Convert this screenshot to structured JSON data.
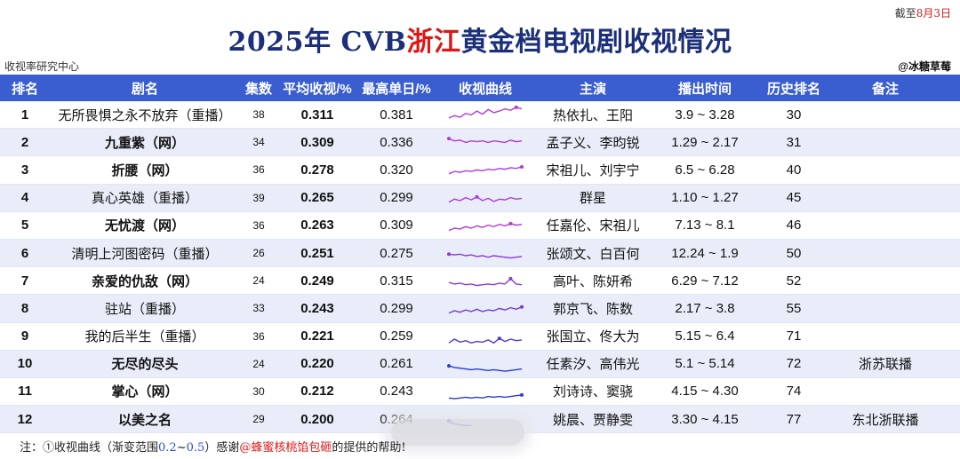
{
  "date_note": {
    "prefix": "截至",
    "date": "8月3日"
  },
  "title": {
    "part1": "2025年 CVB",
    "highlight": "浙江",
    "part2": "黄金档电视剧收视情况"
  },
  "source": "收视率研究中心",
  "author": "@冰糖草莓",
  "headers": [
    "排名",
    "剧名",
    "集数",
    "平均收视/%",
    "最高单日/%",
    "收视曲线",
    "主演",
    "播出时间",
    "历史排名",
    "备注"
  ],
  "colors": {
    "header_bg": "#3a5ecf",
    "title": "#1b2f7a",
    "highlight": "#e01515",
    "alt_row": "#e8edf9"
  },
  "rows": [
    {
      "rank": "1",
      "name": "无所畏惧之永不放弃（重播）",
      "bold": false,
      "eps": "38",
      "avg": "0.311",
      "peak": "0.381",
      "actors": "热依扎、王阳",
      "time": "3.9 ~ 3.28",
      "hist": "30",
      "note": "",
      "curve": [
        0.24,
        0.27,
        0.25,
        0.3,
        0.28,
        0.33,
        0.29,
        0.35,
        0.31,
        0.33,
        0.36,
        0.34,
        0.38,
        0.36
      ],
      "curve_color": "#b13ad6"
    },
    {
      "rank": "2",
      "name": "九重紫（网）",
      "bold": true,
      "eps": "34",
      "avg": "0.309",
      "peak": "0.336",
      "actors": "孟子义、李昀锐",
      "time": "1.29 ~ 2.17",
      "hist": "31",
      "note": "",
      "curve": [
        0.33,
        0.3,
        0.31,
        0.28,
        0.3,
        0.29,
        0.3,
        0.28,
        0.3,
        0.29,
        0.28,
        0.31,
        0.29,
        0.3
      ],
      "curve_color": "#b13ad6"
    },
    {
      "rank": "3",
      "name": "折腰（网）",
      "bold": true,
      "eps": "36",
      "avg": "0.278",
      "peak": "0.320",
      "actors": "宋祖儿、刘宇宁",
      "time": "6.5 ~ 6.28",
      "hist": "40",
      "note": "",
      "curve": [
        0.23,
        0.26,
        0.25,
        0.27,
        0.26,
        0.28,
        0.27,
        0.29,
        0.28,
        0.3,
        0.29,
        0.31,
        0.3,
        0.32
      ],
      "curve_color": "#b13ad6"
    },
    {
      "rank": "4",
      "name": "真心英雄（重播）",
      "bold": false,
      "eps": "39",
      "avg": "0.265",
      "peak": "0.299",
      "actors": "群星",
      "time": "1.10 ~ 1.27",
      "hist": "45",
      "note": "",
      "curve": [
        0.23,
        0.27,
        0.25,
        0.29,
        0.26,
        0.3,
        0.25,
        0.28,
        0.24,
        0.27,
        0.26,
        0.29,
        0.27,
        0.28
      ],
      "curve_color": "#b13ad6"
    },
    {
      "rank": "5",
      "name": "无忧渡（网）",
      "bold": true,
      "eps": "36",
      "avg": "0.263",
      "peak": "0.309",
      "actors": "任嘉伦、宋祖儿",
      "time": "7.13 ~ 8.1",
      "hist": "46",
      "note": "",
      "curve": [
        0.22,
        0.25,
        0.24,
        0.27,
        0.25,
        0.28,
        0.26,
        0.29,
        0.27,
        0.3,
        0.28,
        0.31,
        0.29,
        0.3
      ],
      "curve_color": "#b13ad6"
    },
    {
      "rank": "6",
      "name": "清明上河图密码（重播）",
      "bold": false,
      "eps": "26",
      "avg": "0.251",
      "peak": "0.275",
      "actors": "张颂文、白百何",
      "time": "12.24 ~ 1.9",
      "hist": "50",
      "note": "",
      "curve": [
        0.27,
        0.26,
        0.27,
        0.25,
        0.26,
        0.24,
        0.25,
        0.23,
        0.25,
        0.24,
        0.23,
        0.22,
        0.23,
        0.24
      ],
      "curve_color": "#8b3ad6"
    },
    {
      "rank": "7",
      "name": "亲爱的仇敌（网）",
      "bold": true,
      "eps": "24",
      "avg": "0.249",
      "peak": "0.315",
      "actors": "高叶、陈妍希",
      "time": "6.29 ~ 7.12",
      "hist": "52",
      "note": "",
      "curve": [
        0.26,
        0.24,
        0.25,
        0.23,
        0.24,
        0.22,
        0.23,
        0.24,
        0.23,
        0.25,
        0.24,
        0.31,
        0.24,
        0.23
      ],
      "curve_color": "#8b3ad6"
    },
    {
      "rank": "8",
      "name": "驻站（重播）",
      "bold": false,
      "eps": "33",
      "avg": "0.243",
      "peak": "0.299",
      "actors": "郭京飞、陈数",
      "time": "2.17 ~ 3.8",
      "hist": "55",
      "note": "",
      "curve": [
        0.22,
        0.25,
        0.23,
        0.26,
        0.24,
        0.27,
        0.24,
        0.26,
        0.25,
        0.28,
        0.26,
        0.29,
        0.27,
        0.3
      ],
      "curve_color": "#7a3ad6"
    },
    {
      "rank": "9",
      "name": "我的后半生（重播）",
      "bold": false,
      "eps": "36",
      "avg": "0.221",
      "peak": "0.259",
      "actors": "张国立、佟大为",
      "time": "5.15 ~ 6.4",
      "hist": "71",
      "note": "",
      "curve": [
        0.2,
        0.25,
        0.21,
        0.23,
        0.2,
        0.22,
        0.21,
        0.24,
        0.2,
        0.26,
        0.22,
        0.25,
        0.23,
        0.24
      ],
      "curve_color": "#4a3ad6"
    },
    {
      "rank": "10",
      "name": "无尽的尽头",
      "bold": true,
      "eps": "24",
      "avg": "0.220",
      "peak": "0.261",
      "actors": "任素汐、高伟光",
      "time": "5.1 ~ 5.14",
      "hist": "72",
      "note": "浙苏联播",
      "curve": [
        0.26,
        0.24,
        0.23,
        0.22,
        0.21,
        0.22,
        0.21,
        0.2,
        0.21,
        0.2,
        0.19,
        0.2,
        0.21,
        0.22
      ],
      "curve_color": "#2a3ad6"
    },
    {
      "rank": "11",
      "name": "掌心（网）",
      "bold": true,
      "eps": "30",
      "avg": "0.212",
      "peak": "0.243",
      "actors": "刘诗诗、窦骁",
      "time": "4.15 ~ 4.30",
      "hist": "74",
      "note": "",
      "curve": [
        0.2,
        0.19,
        0.2,
        0.21,
        0.2,
        0.21,
        0.2,
        0.22,
        0.21,
        0.22,
        0.21,
        0.22,
        0.23,
        0.24
      ],
      "curve_color": "#2a3ad6"
    },
    {
      "rank": "12",
      "name": "以美之名",
      "bold": true,
      "eps": "29",
      "avg": "0.200",
      "peak": "0.264",
      "actors": "姚晨、贾静雯",
      "time": "3.30 ~ 4.15",
      "hist": "77",
      "note": "东北浙联播",
      "curve": [
        0.26,
        0.22,
        0.21,
        0.2,
        0.2
      ],
      "curve_color": "#2a3ad6"
    }
  ],
  "footer": {
    "prefix": "注：①收视曲线（渐变范围",
    "range_low": "0.2",
    "tilde": "~",
    "range_high": "0.5",
    "mid": "）感谢",
    "handle": "@蜂蜜核桃馅包砸",
    "suffix": "的提供的帮助!"
  }
}
